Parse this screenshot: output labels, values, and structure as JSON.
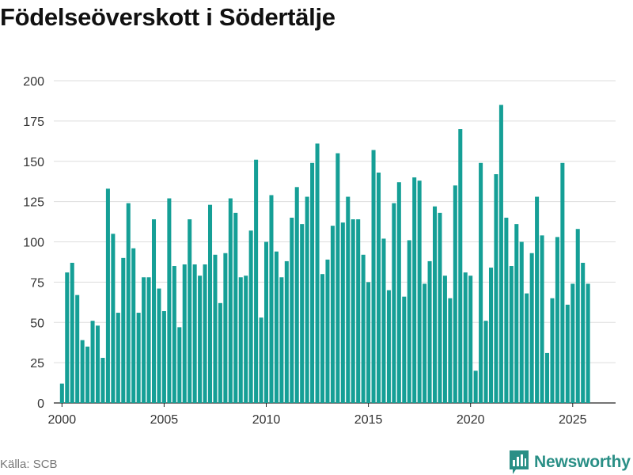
{
  "title": "Födelseöverskott i Södertälje",
  "source": "Källa: SCB",
  "brand": {
    "name": "Newsworthy",
    "icon": "newsworthy-logo-icon"
  },
  "colors": {
    "bar": "#159f96",
    "grid": "#dddddd",
    "brand": "#2a8f86"
  },
  "chart_data": {
    "type": "bar",
    "title": "Födelseöverskott i Södertälje",
    "xlabel": "",
    "ylabel": "",
    "frequency": "quarterly",
    "ylim": [
      0,
      200
    ],
    "xlim": [
      1999.6,
      2027.1
    ],
    "y_ticks": [
      0,
      25,
      50,
      75,
      100,
      125,
      150,
      175,
      200
    ],
    "x_ticks": [
      2000,
      2005,
      2010,
      2015,
      2020,
      2025
    ],
    "grid": true,
    "legend": "none",
    "series": [
      {
        "name": "Födelseöverskott",
        "x": [
          2000.0,
          2000.25,
          2000.5,
          2000.75,
          2001.0,
          2001.25,
          2001.5,
          2001.75,
          2002.0,
          2002.25,
          2002.5,
          2002.75,
          2003.0,
          2003.25,
          2003.5,
          2003.75,
          2004.0,
          2004.25,
          2004.5,
          2004.75,
          2005.0,
          2005.25,
          2005.5,
          2005.75,
          2006.0,
          2006.25,
          2006.5,
          2006.75,
          2007.0,
          2007.25,
          2007.5,
          2007.75,
          2008.0,
          2008.25,
          2008.5,
          2008.75,
          2009.0,
          2009.25,
          2009.5,
          2009.75,
          2010.0,
          2010.25,
          2010.5,
          2010.75,
          2011.0,
          2011.25,
          2011.5,
          2011.75,
          2012.0,
          2012.25,
          2012.5,
          2012.75,
          2013.0,
          2013.25,
          2013.5,
          2013.75,
          2014.0,
          2014.25,
          2014.5,
          2014.75,
          2015.0,
          2015.25,
          2015.5,
          2015.75,
          2016.0,
          2016.25,
          2016.5,
          2016.75,
          2017.0,
          2017.25,
          2017.5,
          2017.75,
          2018.0,
          2018.25,
          2018.5,
          2018.75,
          2019.0,
          2019.25,
          2019.5,
          2019.75,
          2020.0,
          2020.25,
          2020.5,
          2020.75,
          2021.0,
          2021.25,
          2021.5,
          2021.75,
          2022.0,
          2022.25,
          2022.5,
          2022.75,
          2023.0,
          2023.25,
          2023.5,
          2023.75,
          2024.0,
          2024.25,
          2024.5,
          2024.75,
          2025.0,
          2025.25,
          2025.5,
          2025.75
        ],
        "values": [
          12,
          81,
          87,
          67,
          39,
          35,
          51,
          48,
          28,
          133,
          105,
          56,
          90,
          124,
          96,
          56,
          78,
          78,
          114,
          71,
          57,
          127,
          85,
          47,
          86,
          114,
          86,
          79,
          86,
          123,
          92,
          62,
          93,
          127,
          118,
          78,
          79,
          107,
          151,
          53,
          100,
          129,
          94,
          78,
          88,
          115,
          134,
          111,
          128,
          149,
          161,
          80,
          89,
          110,
          155,
          112,
          128,
          114,
          114,
          92,
          75,
          157,
          143,
          102,
          70,
          124,
          137,
          66,
          101,
          140,
          138,
          74,
          88,
          122,
          118,
          79,
          65,
          135,
          170,
          81,
          79,
          20,
          149,
          51,
          84,
          142,
          185,
          115,
          85,
          111,
          100,
          68,
          93,
          128,
          104,
          31,
          65,
          103,
          149,
          61,
          74,
          108,
          87,
          74
        ]
      }
    ]
  }
}
